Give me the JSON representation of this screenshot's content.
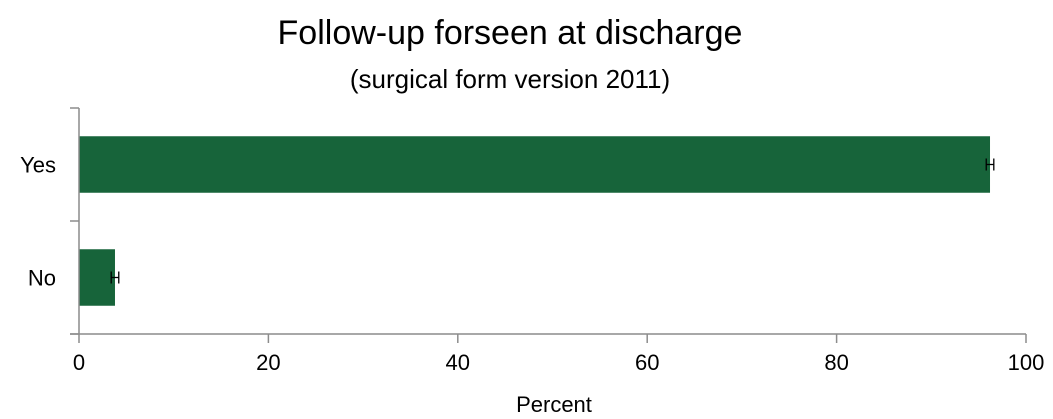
{
  "chart_data": {
    "type": "bar",
    "orientation": "horizontal",
    "title": "Follow-up forseen at discharge",
    "subtitle": "(surgical form version 2011)",
    "xlabel": "Percent",
    "ylabel": "",
    "categories": [
      "Yes",
      "No"
    ],
    "values": [
      96.2,
      3.8
    ],
    "error_low": [
      95.8,
      3.4
    ],
    "error_high": [
      96.6,
      4.2
    ],
    "xlim": [
      0,
      100
    ],
    "xticks": [
      0,
      20,
      40,
      60,
      80,
      100
    ],
    "grid": false,
    "legend": "none",
    "bar_color": "#17643a",
    "axis_color": "#8c8c8c",
    "error_bar_color": "#000000"
  }
}
